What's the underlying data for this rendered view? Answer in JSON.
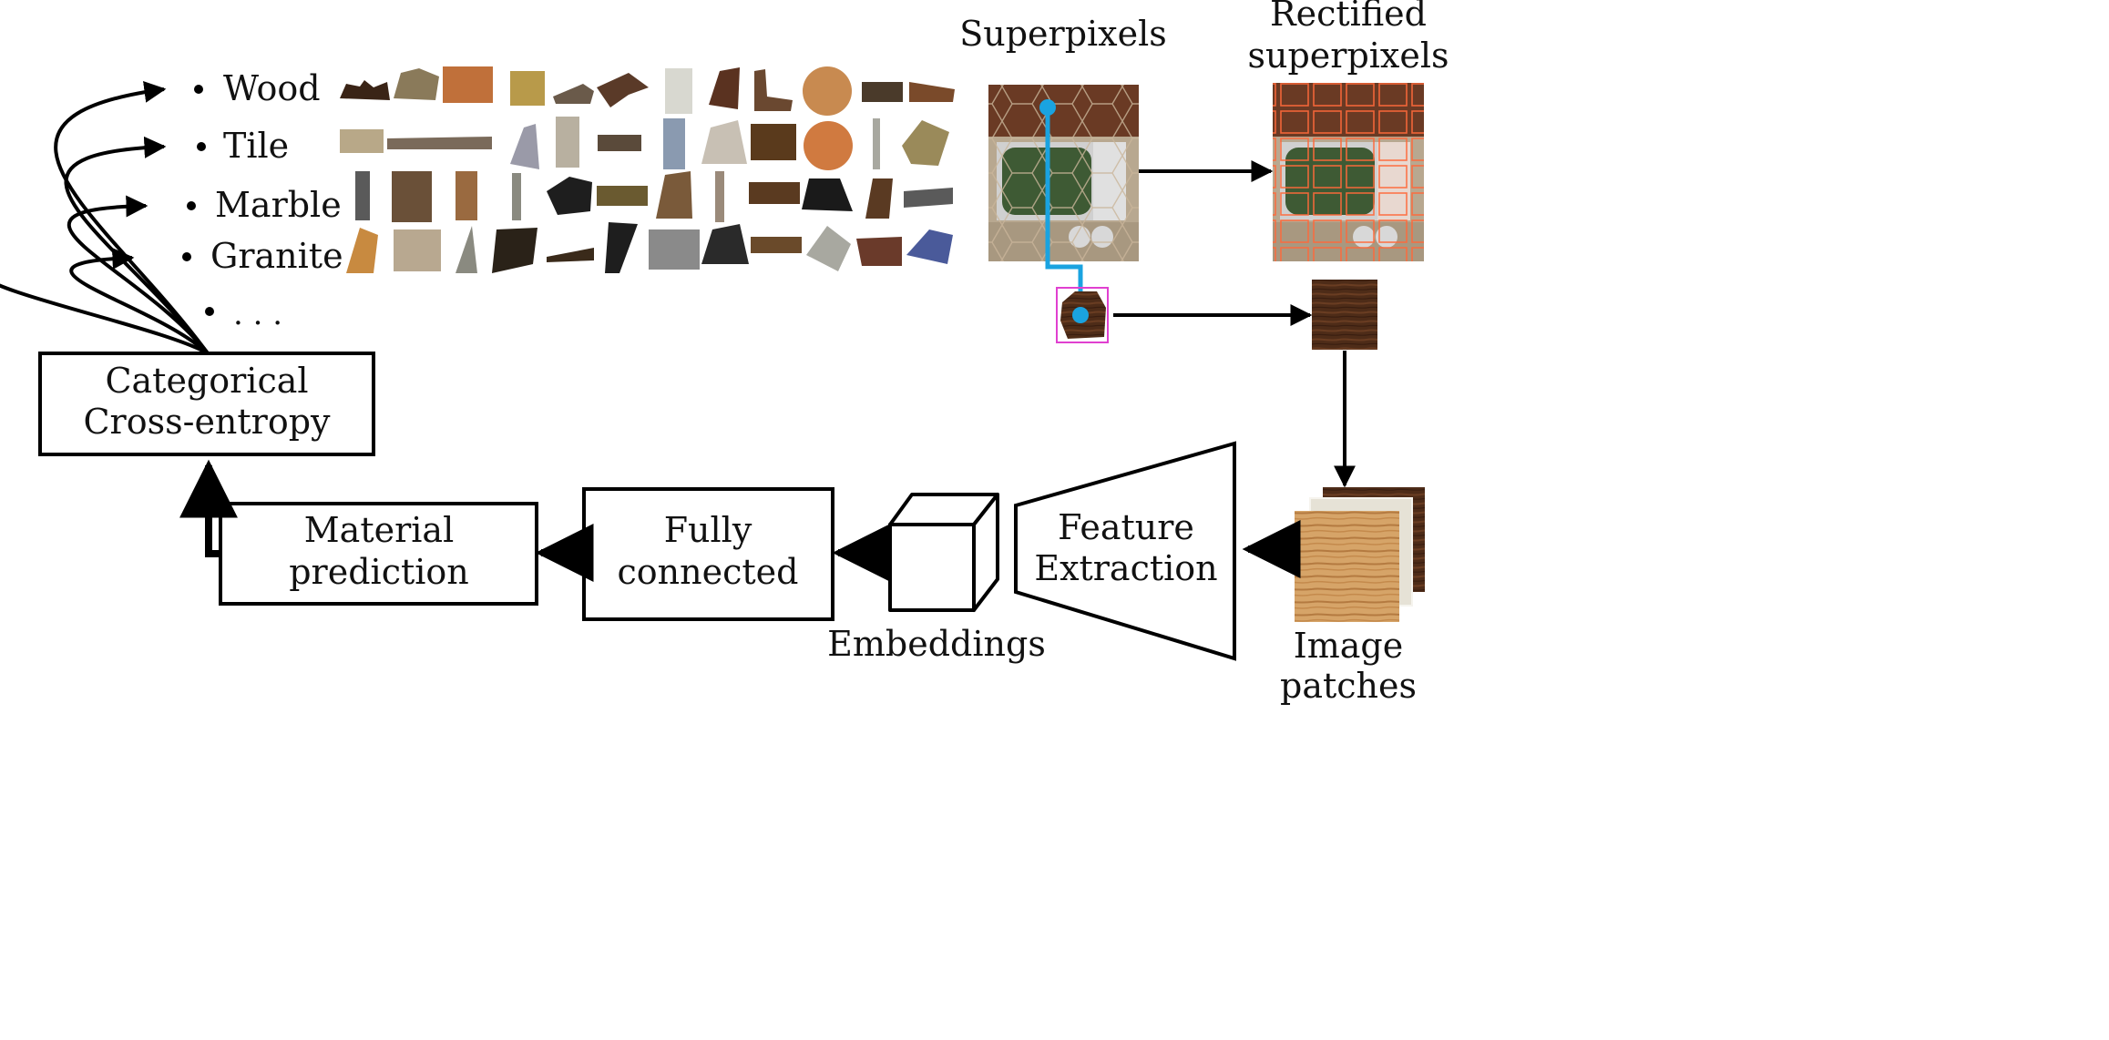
{
  "categories": {
    "items": [
      "Wood",
      "Tile",
      "Marble",
      "Granite"
    ],
    "ellipsis": ". . ."
  },
  "labels": {
    "superpixels": "Superpixels",
    "rectified_line1": "Rectified",
    "rectified_line2": "superpixels",
    "image_patches_line1": "Image",
    "image_patches_line2": "patches",
    "embeddings": "Embeddings"
  },
  "boxes": {
    "loss_line1": "Categorical",
    "loss_line2": "Cross-entropy",
    "prediction_line1": "Material",
    "prediction_line2": "prediction",
    "fc_line1": "Fully",
    "fc_line2": "connected",
    "feature_line1": "Feature",
    "feature_line2": "Extraction"
  },
  "colors": {
    "path_highlight": "#1aa3e0",
    "crop_box": "#e040d0",
    "wood_dark": "#4a2a16",
    "wood_light": "#d39a5c",
    "tile_grid": "#e8643a",
    "screen_green": "#3e5a34"
  }
}
